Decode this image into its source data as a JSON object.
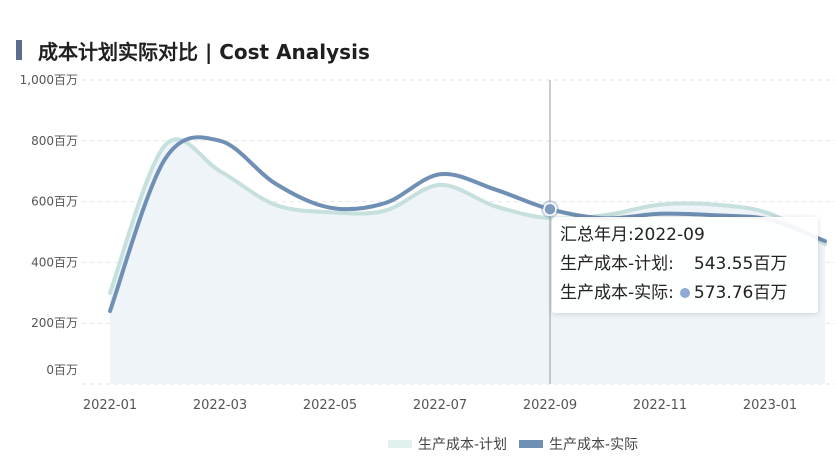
{
  "header": {
    "title": "成本计划实际对比 | Cost Analysis"
  },
  "chart_data": {
    "type": "line",
    "title": "成本计划实际对比 | Cost Analysis",
    "xlabel": "",
    "ylabel": "",
    "x": [
      "2022-01",
      "2022-02",
      "2022-03",
      "2022-04",
      "2022-05",
      "2022-06",
      "2022-07",
      "2022-08",
      "2022-09",
      "2022-10",
      "2022-11",
      "2022-12",
      "2023-01",
      "2023-02"
    ],
    "x_tick_labels": [
      "2022-01",
      "2022-03",
      "2022-05",
      "2022-07",
      "2022-09",
      "2022-11",
      "2023-01"
    ],
    "y_tick_labels": [
      "0百万",
      "200百万",
      "400百万",
      "600百万",
      "800百万",
      "1,000百万"
    ],
    "ylim": [
      0,
      1000
    ],
    "grid": true,
    "legend_position": "bottom",
    "series": [
      {
        "name": "生产成本-计划",
        "color": "#c5e0dd",
        "area": true,
        "area_color": "#eef4f8",
        "values": [
          300,
          785,
          700,
          590,
          565,
          570,
          655,
          585,
          545,
          555,
          590,
          590,
          560,
          460
        ]
      },
      {
        "name": "生产成本-实际",
        "color": "#6f8fb4",
        "area": false,
        "values": [
          240,
          740,
          800,
          660,
          580,
          595,
          690,
          640,
          575,
          545,
          560,
          555,
          540,
          470
        ]
      }
    ],
    "tooltip": {
      "title": "汇总年月:2022-09",
      "rows": [
        {
          "label": "生产成本-计划:",
          "value": "543.55百万"
        },
        {
          "label": "生产成本-实际:",
          "value": "573.76百万"
        }
      ]
    }
  }
}
